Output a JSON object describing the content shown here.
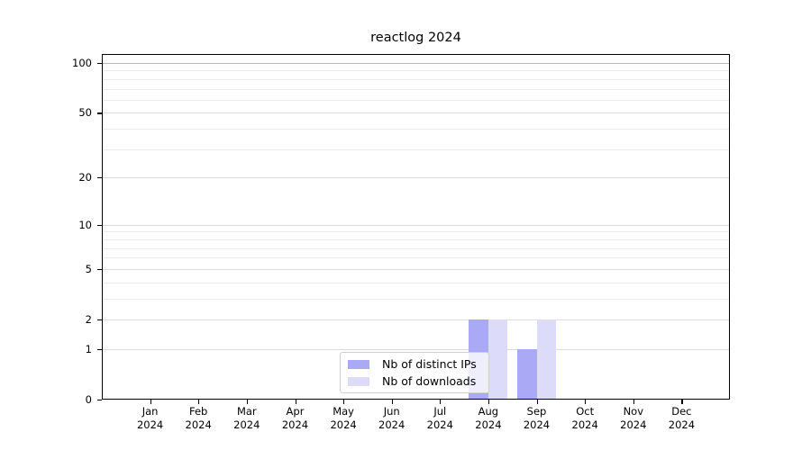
{
  "chart_data": {
    "type": "bar",
    "title": "reactlog 2024",
    "categories": [
      "Jan",
      "Feb",
      "Mar",
      "Apr",
      "May",
      "Jun",
      "Jul",
      "Aug",
      "Sep",
      "Oct",
      "Nov",
      "Dec"
    ],
    "year_label": "2024",
    "series": [
      {
        "key": "distinct-ips",
        "name": "Nb of distinct IPs",
        "color": "#a9a9f5",
        "values": [
          0,
          0,
          0,
          0,
          0,
          0,
          0,
          2,
          1,
          0,
          0,
          0
        ]
      },
      {
        "key": "downloads",
        "name": "Nb of downloads",
        "color": "#dcdcfa",
        "values": [
          0,
          0,
          0,
          0,
          0,
          0,
          0,
          2,
          2,
          0,
          0,
          0
        ]
      }
    ],
    "xlabel": "",
    "ylabel": "",
    "yscale": "log1p",
    "ylim": [
      0,
      113
    ],
    "yticks": [
      0,
      1,
      2,
      5,
      10,
      20,
      50,
      100
    ],
    "minor_yticks": [
      3,
      4,
      6,
      7,
      8,
      9,
      30,
      40,
      60,
      70,
      80,
      90
    ],
    "grid": "horizontal",
    "legend_position": "lower-center"
  }
}
